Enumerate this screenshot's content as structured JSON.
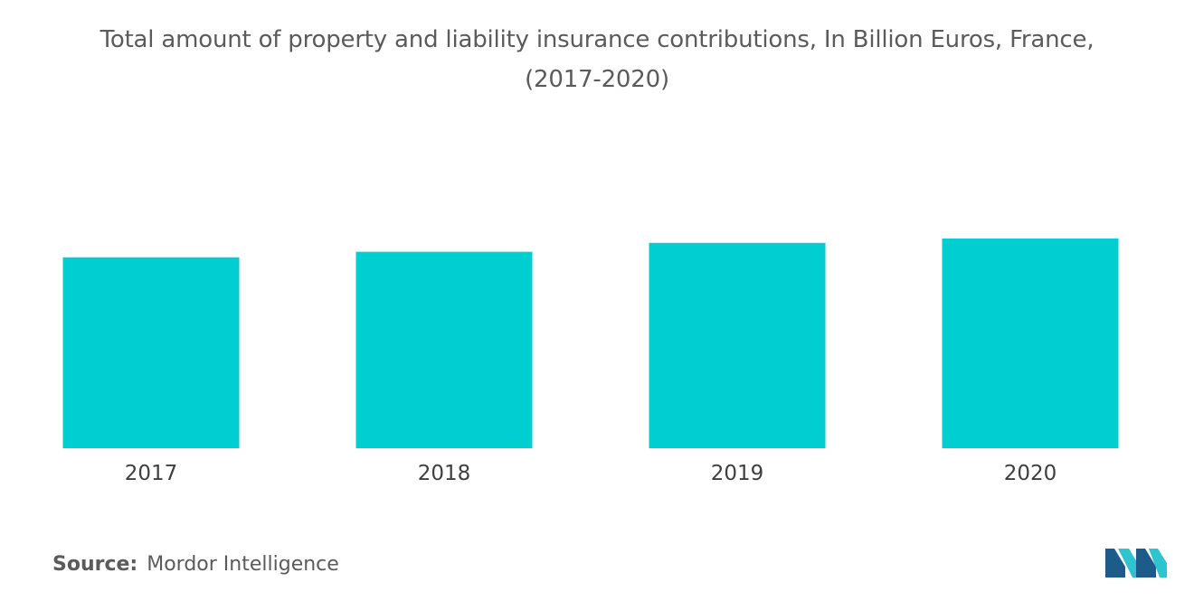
{
  "title_line1": "Total amount of property and liability insurance contributions, In Billion Euros, France,",
  "title_line2": "(2017-2020)",
  "source_label": "Source:",
  "source_text": "Mordor Intelligence",
  "colors": {
    "bar": "#00ced1",
    "logo_dark": "#1d5c8a",
    "logo_light": "#2ec4cf"
  },
  "chart_data": {
    "type": "bar",
    "categories": [
      "2017",
      "2018",
      "2019",
      "2020"
    ],
    "values": [
      55.6,
      57.2,
      59.8,
      61.1
    ],
    "title": "Total amount of property and liability insurance contributions, In Billion Euros, France, (2017-2020)",
    "xlabel": "",
    "ylabel": "",
    "ylim": [
      0,
      100
    ],
    "grid": false,
    "legend": "none"
  }
}
